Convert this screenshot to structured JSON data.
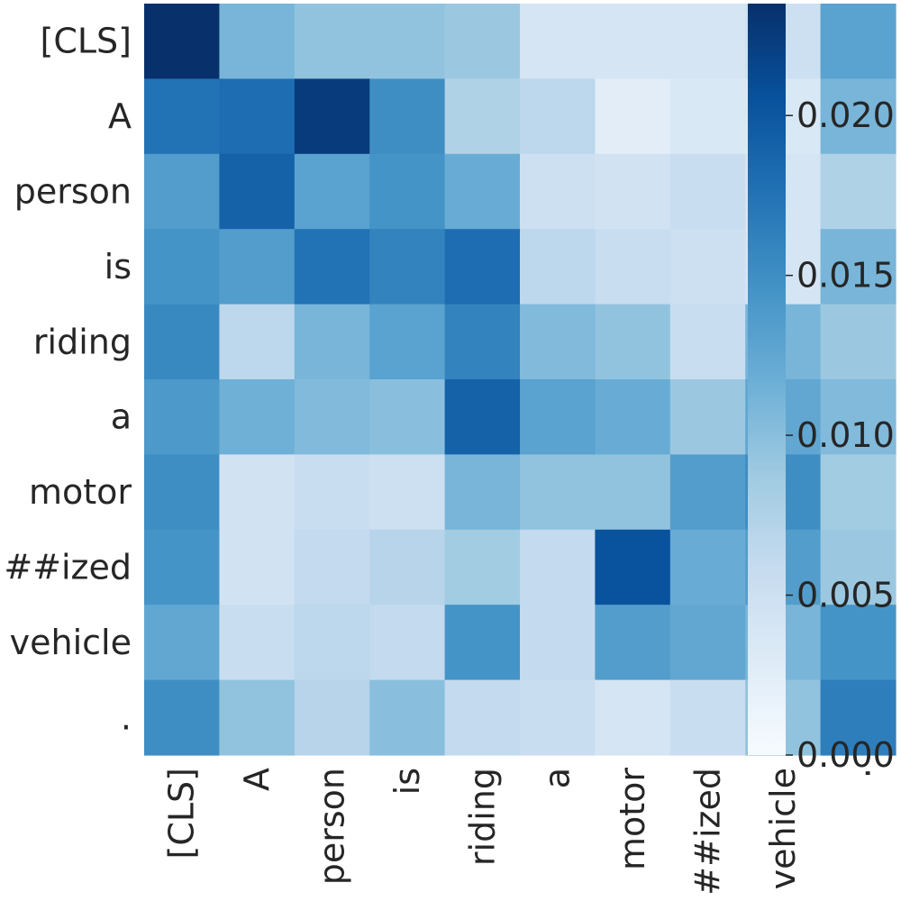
{
  "chart_data": {
    "type": "heatmap",
    "title": "",
    "xlabel": "",
    "ylabel": "",
    "row_labels": [
      "[CLS]",
      "A",
      "person",
      "is",
      "riding",
      "a",
      "motor",
      "##ized",
      "vehicle",
      "."
    ],
    "col_labels": [
      "[CLS]",
      "A",
      "person",
      "is",
      "riding",
      "a",
      "motor",
      "##ized",
      "vehicle",
      "."
    ],
    "values": [
      [
        0.0235,
        0.011,
        0.0095,
        0.0095,
        0.009,
        0.004,
        0.004,
        0.004,
        0.005,
        0.013
      ],
      [
        0.0175,
        0.018,
        0.0225,
        0.015,
        0.0075,
        0.0065,
        0.0025,
        0.0035,
        0.0035,
        0.011
      ],
      [
        0.0135,
        0.019,
        0.013,
        0.0145,
        0.012,
        0.005,
        0.0045,
        0.0055,
        0.004,
        0.0075
      ],
      [
        0.0145,
        0.0135,
        0.0175,
        0.016,
        0.018,
        0.0065,
        0.0055,
        0.005,
        0.004,
        0.011
      ],
      [
        0.0155,
        0.0065,
        0.011,
        0.013,
        0.016,
        0.0105,
        0.0095,
        0.0055,
        0.011,
        0.009
      ],
      [
        0.014,
        0.0115,
        0.0105,
        0.01,
        0.019,
        0.013,
        0.012,
        0.009,
        0.0125,
        0.0105
      ],
      [
        0.015,
        0.0045,
        0.0055,
        0.005,
        0.011,
        0.0095,
        0.0095,
        0.0135,
        0.015,
        0.0085
      ],
      [
        0.0145,
        0.0045,
        0.006,
        0.007,
        0.0085,
        0.006,
        0.0205,
        0.012,
        0.0135,
        0.009
      ],
      [
        0.0125,
        0.0055,
        0.0065,
        0.006,
        0.0145,
        0.006,
        0.0135,
        0.0125,
        0.011,
        0.0145
      ],
      [
        0.015,
        0.0095,
        0.007,
        0.01,
        0.006,
        0.0055,
        0.004,
        0.0055,
        0.0095,
        0.0165
      ]
    ],
    "colormap": "Blues",
    "vmin": 0.0,
    "vmax": 0.0235,
    "colorbar_ticks": [
      "0.000",
      "0.005",
      "0.010",
      "0.015",
      "0.020"
    ],
    "colorbar_tick_values": [
      0.0,
      0.005,
      0.01,
      0.015,
      0.02
    ],
    "grid": false,
    "colors": {
      "low": "#f7fbff",
      "high": "#08306b",
      "text": "#262626"
    }
  }
}
